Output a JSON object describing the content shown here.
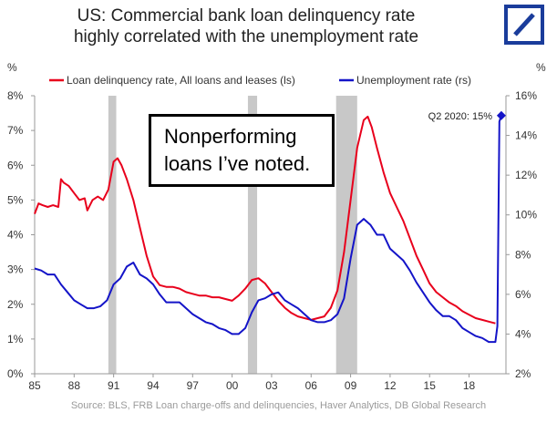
{
  "title_line1": "US: Commercial bank loan delinquency rate",
  "title_line2": "highly correlated with the unemployment rate",
  "logo": "deutsche-bank-slash-logo",
  "callout_line1": "Nonperforming",
  "callout_line2": "loans I’ve noted.",
  "source": "Source: BLS, FRB Loan charge-offs and delinquencies, Haver Analytics, DB Global  Research",
  "colors": {
    "delinquency": "#e8001c",
    "unemployment": "#1414c8",
    "recession": "#c8c8c8",
    "logo": "#1a3c9b"
  },
  "chart_data": {
    "type": "line",
    "left_unit": "%",
    "right_unit": "%",
    "x_ticks": [
      "85",
      "88",
      "91",
      "94",
      "97",
      "00",
      "03",
      "06",
      "09",
      "12",
      "15",
      "18"
    ],
    "left_ticks": [
      "0%",
      "1%",
      "2%",
      "3%",
      "4%",
      "5%",
      "6%",
      "7%",
      "8%"
    ],
    "right_ticks": [
      "2%",
      "4%",
      "6%",
      "8%",
      "10%",
      "12%",
      "14%",
      "16%"
    ],
    "xlim": [
      1985,
      2020.8
    ],
    "ylim_left": [
      0,
      8
    ],
    "ylim_right": [
      2,
      16
    ],
    "annotation": "Q2 2020: 15%",
    "recessions": [
      [
        1990.6,
        1991.2
      ],
      [
        2001.2,
        2001.9
      ],
      [
        2007.9,
        2009.5
      ]
    ],
    "series": [
      {
        "name": "Loan delinquency rate, All loans and leases (ls)",
        "axis": "left",
        "x": [
          1985.0,
          1985.3,
          1985.6,
          1986.0,
          1986.4,
          1986.8,
          1987.0,
          1987.2,
          1987.6,
          1988.0,
          1988.4,
          1988.8,
          1989.0,
          1989.4,
          1989.8,
          1990.2,
          1990.6,
          1991.0,
          1991.3,
          1991.6,
          1992.0,
          1992.5,
          1993.0,
          1993.5,
          1994.0,
          1994.5,
          1995.0,
          1995.5,
          1996.0,
          1996.5,
          1997.0,
          1997.5,
          1998.0,
          1998.5,
          1999.0,
          1999.5,
          2000.0,
          2000.5,
          2001.0,
          2001.5,
          2002.0,
          2002.5,
          2003.0,
          2003.5,
          2004.0,
          2004.5,
          2005.0,
          2005.5,
          2006.0,
          2006.5,
          2007.0,
          2007.5,
          2008.0,
          2008.5,
          2009.0,
          2009.5,
          2010.0,
          2010.3,
          2010.6,
          2011.0,
          2011.5,
          2012.0,
          2012.5,
          2013.0,
          2013.5,
          2014.0,
          2014.5,
          2015.0,
          2015.5,
          2016.0,
          2016.5,
          2017.0,
          2017.5,
          2018.0,
          2018.5,
          2019.0,
          2019.5,
          2020.0
        ],
        "y": [
          4.6,
          4.9,
          4.85,
          4.8,
          4.85,
          4.8,
          5.6,
          5.5,
          5.4,
          5.2,
          5.0,
          5.05,
          4.7,
          5.0,
          5.1,
          5.0,
          5.3,
          6.1,
          6.2,
          6.0,
          5.6,
          5.0,
          4.2,
          3.4,
          2.8,
          2.55,
          2.5,
          2.5,
          2.45,
          2.35,
          2.3,
          2.25,
          2.25,
          2.2,
          2.2,
          2.15,
          2.1,
          2.25,
          2.45,
          2.7,
          2.75,
          2.6,
          2.35,
          2.1,
          1.9,
          1.75,
          1.65,
          1.6,
          1.55,
          1.6,
          1.65,
          1.9,
          2.4,
          3.5,
          5.0,
          6.5,
          7.3,
          7.4,
          7.1,
          6.5,
          5.8,
          5.2,
          4.8,
          4.4,
          3.9,
          3.4,
          3.0,
          2.6,
          2.35,
          2.2,
          2.05,
          1.95,
          1.8,
          1.7,
          1.6,
          1.55,
          1.5,
          1.45
        ]
      },
      {
        "name": "Unemployment rate (rs)",
        "axis": "right",
        "x": [
          1985.0,
          1985.5,
          1986.0,
          1986.5,
          1987.0,
          1987.5,
          1988.0,
          1988.5,
          1989.0,
          1989.5,
          1990.0,
          1990.5,
          1991.0,
          1991.5,
          1992.0,
          1992.5,
          1993.0,
          1993.5,
          1994.0,
          1994.5,
          1995.0,
          1995.5,
          1996.0,
          1996.5,
          1997.0,
          1997.5,
          1998.0,
          1998.5,
          1999.0,
          1999.5,
          2000.0,
          2000.5,
          2001.0,
          2001.5,
          2002.0,
          2002.5,
          2003.0,
          2003.5,
          2004.0,
          2004.5,
          2005.0,
          2005.5,
          2006.0,
          2006.5,
          2007.0,
          2007.5,
          2008.0,
          2008.5,
          2009.0,
          2009.5,
          2010.0,
          2010.5,
          2011.0,
          2011.5,
          2012.0,
          2012.5,
          2013.0,
          2013.5,
          2014.0,
          2014.5,
          2015.0,
          2015.5,
          2016.0,
          2016.5,
          2017.0,
          2017.5,
          2018.0,
          2018.5,
          2019.0,
          2019.5,
          2020.0,
          2020.15,
          2020.3,
          2020.45
        ],
        "y": [
          7.3,
          7.2,
          7.0,
          7.0,
          6.5,
          6.1,
          5.7,
          5.5,
          5.3,
          5.3,
          5.4,
          5.7,
          6.5,
          6.8,
          7.4,
          7.6,
          7.0,
          6.8,
          6.5,
          6.0,
          5.6,
          5.6,
          5.6,
          5.3,
          5.0,
          4.8,
          4.6,
          4.5,
          4.3,
          4.2,
          4.0,
          4.0,
          4.3,
          5.1,
          5.7,
          5.8,
          6.0,
          6.1,
          5.7,
          5.5,
          5.3,
          5.0,
          4.7,
          4.6,
          4.6,
          4.7,
          5.0,
          5.8,
          7.8,
          9.5,
          9.8,
          9.5,
          9.0,
          9.0,
          8.3,
          8.0,
          7.7,
          7.2,
          6.6,
          6.1,
          5.6,
          5.2,
          4.9,
          4.9,
          4.7,
          4.3,
          4.1,
          3.9,
          3.8,
          3.6,
          3.6,
          4.4,
          14.7,
          15.0
        ]
      }
    ]
  }
}
